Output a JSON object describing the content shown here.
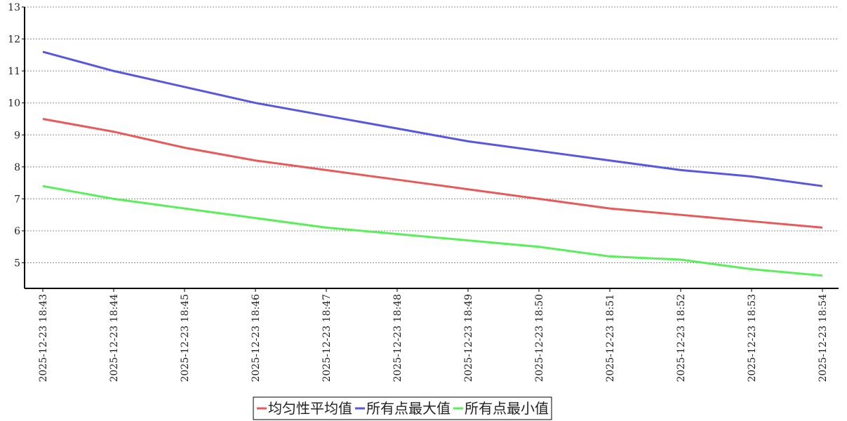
{
  "chart_data": {
    "type": "line",
    "categories": [
      "2025-12-23 18:43",
      "2025-12-23 18:44",
      "2025-12-23 18:45",
      "2025-12-23 18:46",
      "2025-12-23 18:47",
      "2025-12-23 18:48",
      "2025-12-23 18:49",
      "2025-12-23 18:50",
      "2025-12-23 18:51",
      "2025-12-23 18:52",
      "2025-12-23 18:53",
      "2025-12-23 18:54"
    ],
    "series": [
      {
        "name": "均匀性平均值",
        "color": "#e85a5a",
        "values": [
          9.5,
          9.1,
          8.6,
          8.2,
          7.9,
          7.6,
          7.3,
          7.0,
          6.7,
          6.5,
          6.3,
          6.1
        ]
      },
      {
        "name": "所有点最大值",
        "color": "#5757e0",
        "values": [
          11.6,
          11.0,
          10.5,
          10.0,
          9.6,
          9.2,
          8.8,
          8.5,
          8.2,
          7.9,
          7.7,
          7.4
        ]
      },
      {
        "name": "所有点最小值",
        "color": "#5aee5a",
        "values": [
          7.4,
          7.0,
          6.7,
          6.4,
          6.1,
          5.9,
          5.7,
          5.5,
          5.2,
          5.1,
          4.8,
          4.6
        ]
      }
    ],
    "ylim": [
      4.2,
      13
    ],
    "yticks": [
      5,
      6,
      7,
      8,
      9,
      10,
      11,
      12,
      13
    ],
    "grid": true,
    "legend": "bottom"
  }
}
